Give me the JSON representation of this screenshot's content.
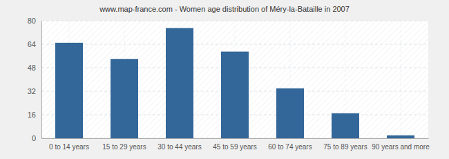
{
  "chart_data": {
    "type": "bar",
    "title": "www.map-france.com - Women age distribution of Méry-la-Bataille in 2007",
    "categories": [
      "0 to 14 years",
      "15 to 29 years",
      "30 to 44 years",
      "45 to 59 years",
      "60 to 74 years",
      "75 to 89 years",
      "90 years and more"
    ],
    "values": [
      65,
      54,
      75,
      59,
      34,
      17,
      2
    ],
    "color": "#336699",
    "ylim": [
      0,
      80
    ],
    "yticks": [
      0,
      16,
      32,
      48,
      64,
      80
    ],
    "grid": true
  }
}
